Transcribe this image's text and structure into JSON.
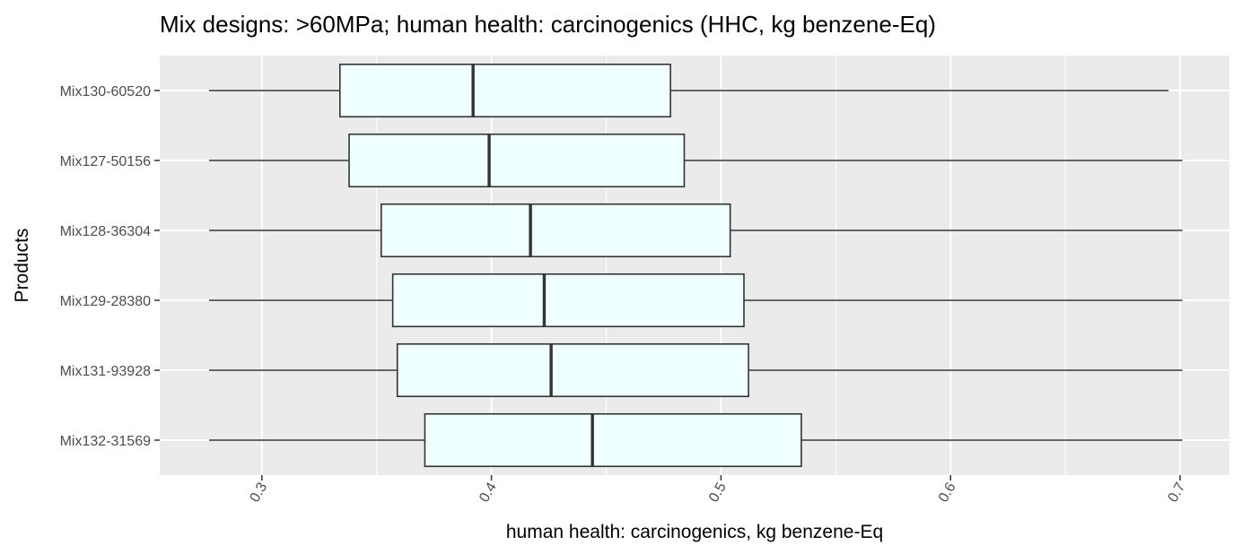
{
  "chart_data": {
    "type": "boxplot",
    "orientation": "horizontal",
    "title": "Mix designs: >60MPa; human health: carcinogenics (HHC, kg benzene-Eq)",
    "xlabel": "human health: carcinogenics, kg benzene-Eq",
    "ylabel": "Products",
    "xlim": [
      0.2555,
      0.7215
    ],
    "x_ticks": [
      0.3,
      0.4,
      0.5,
      0.6,
      0.7
    ],
    "x_tick_labels": [
      "0.3",
      "0.4",
      "0.5",
      "0.6",
      "0.7"
    ],
    "x_minor_ticks": [
      0.35,
      0.45,
      0.55,
      0.65
    ],
    "grid": true,
    "colors": {
      "panel": "#EBEBEB",
      "gridline": "#FFFFFF",
      "box_fill": "#F0FFFF",
      "box_stroke": "#333333"
    },
    "categories": [
      "Mix130-60520",
      "Mix127-50156",
      "Mix128-36304",
      "Mix129-28380",
      "Mix131-93928",
      "Mix132-31569"
    ],
    "boxes": [
      {
        "label": "Mix130-60520",
        "whisker_low": 0.277,
        "q1": 0.334,
        "median": 0.392,
        "q3": 0.478,
        "whisker_high": 0.695
      },
      {
        "label": "Mix127-50156",
        "whisker_low": 0.277,
        "q1": 0.338,
        "median": 0.399,
        "q3": 0.484,
        "whisker_high": 0.701
      },
      {
        "label": "Mix128-36304",
        "whisker_low": 0.277,
        "q1": 0.352,
        "median": 0.417,
        "q3": 0.504,
        "whisker_high": 0.701
      },
      {
        "label": "Mix129-28380",
        "whisker_low": 0.277,
        "q1": 0.357,
        "median": 0.423,
        "q3": 0.51,
        "whisker_high": 0.701
      },
      {
        "label": "Mix131-93928",
        "whisker_low": 0.277,
        "q1": 0.359,
        "median": 0.426,
        "q3": 0.512,
        "whisker_high": 0.701
      },
      {
        "label": "Mix132-31569",
        "whisker_low": 0.277,
        "q1": 0.371,
        "median": 0.444,
        "q3": 0.535,
        "whisker_high": 0.701
      }
    ]
  }
}
